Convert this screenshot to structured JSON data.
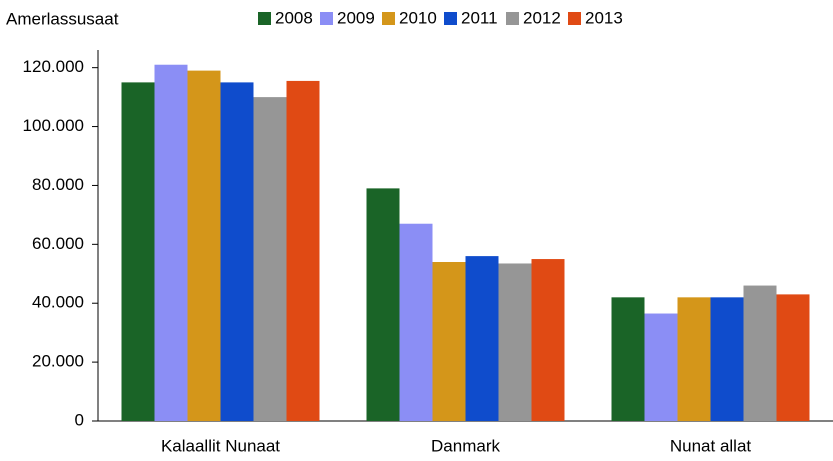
{
  "chart_data": {
    "type": "bar",
    "y_axis_label": "Amerlassusaat",
    "categories": [
      "Kalaallit Nunaat",
      "Danmark",
      "Nunat allat"
    ],
    "series": [
      {
        "name": "2008",
        "color": "#1a6427",
        "values": [
          115000,
          79000,
          42000
        ]
      },
      {
        "name": "2009",
        "color": "#8b8ef5",
        "values": [
          121000,
          67000,
          36500
        ]
      },
      {
        "name": "2010",
        "color": "#d4961a",
        "values": [
          119000,
          54000,
          42000
        ]
      },
      {
        "name": "2011",
        "color": "#0f4ccc",
        "values": [
          115000,
          56000,
          42000
        ]
      },
      {
        "name": "2012",
        "color": "#969696",
        "values": [
          110000,
          53500,
          46000
        ]
      },
      {
        "name": "2013",
        "color": "#e04a14",
        "values": [
          115500,
          55000,
          43000
        ]
      }
    ],
    "ylim": [
      0,
      126000
    ],
    "yticks": [
      0,
      {
        "value": 20000,
        "label": "20.000"
      },
      {
        "value": 40000,
        "label": "40.000"
      },
      {
        "value": 60000,
        "label": "60.000"
      },
      {
        "value": 80000,
        "label": "80.000"
      },
      {
        "value": 100000,
        "label": "100.000"
      },
      {
        "value": 120000,
        "label": "120.000"
      }
    ],
    "grid": false,
    "legend": "top"
  }
}
